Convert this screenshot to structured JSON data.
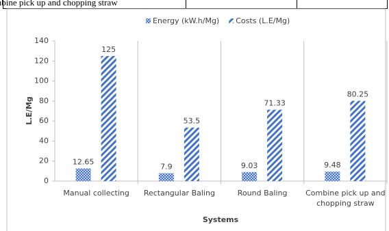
{
  "table_row": {
    "cells": [
      "Combine pick up and chopping straw"
    ]
  },
  "chart_data": {
    "type": "bar",
    "categories": [
      "Manual collecting",
      "Rectangular Baling",
      "Round Baling",
      "Combine pick up and chopping straw"
    ],
    "series": [
      {
        "name": "Energy (kW.h/Mg)",
        "color": "#4472c4",
        "pattern": "dots",
        "values": [
          12.65,
          7.9,
          9.03,
          9.48
        ]
      },
      {
        "name": "Costs (L.E/Mg)",
        "color": "#4472c4",
        "pattern": "stripes",
        "values": [
          125,
          53.5,
          71.33,
          80.25
        ]
      }
    ],
    "y_label": "L.E/Mg",
    "x_label": "Systems",
    "ylim": [
      0,
      140
    ],
    "yticks": [
      0,
      20,
      40,
      60,
      80,
      100,
      120,
      140
    ],
    "legend": "top"
  }
}
